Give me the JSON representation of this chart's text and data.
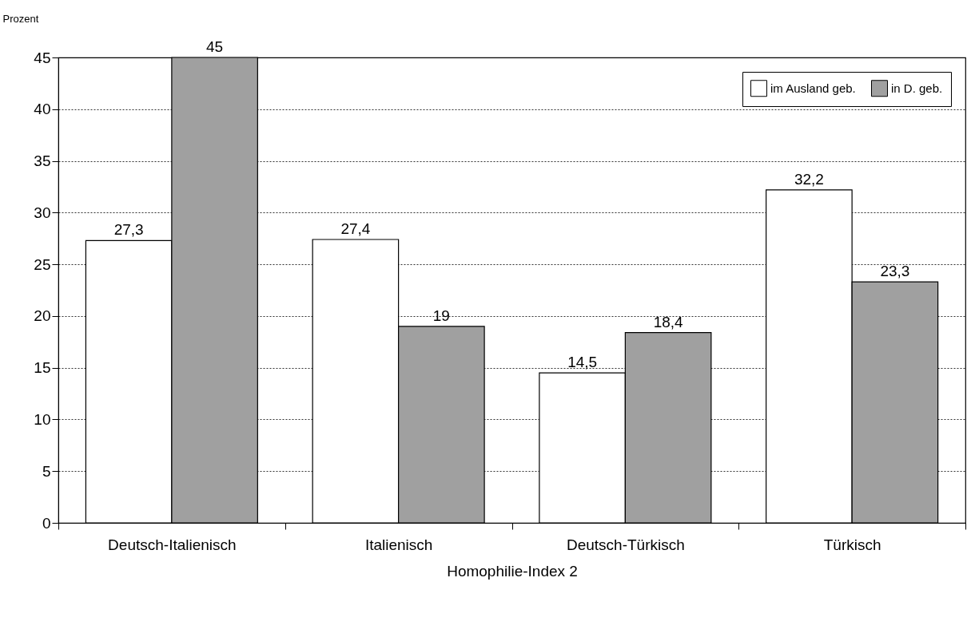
{
  "chart_data": {
    "type": "bar",
    "ylabel": "Prozent",
    "xlabel": "Homophilie-Index 2",
    "categories": [
      "Deutsch-Italienisch",
      "Italienisch",
      "Deutsch-Türkisch",
      "Türkisch"
    ],
    "series": [
      {
        "name": "im Ausland geb.",
        "color": "#ffffff",
        "values": [
          27.3,
          27.4,
          14.5,
          32.2
        ],
        "value_labels": [
          "27,3",
          "27,4",
          "14,5",
          "32,2"
        ]
      },
      {
        "name": "in D. geb.",
        "color": "#a0a0a0",
        "values": [
          45,
          19,
          18.4,
          23.3
        ],
        "value_labels": [
          "45",
          "19",
          "18,4",
          "23,3"
        ]
      }
    ],
    "ylim": [
      0,
      45
    ],
    "yticks": [
      0,
      5,
      10,
      15,
      20,
      25,
      30,
      35,
      40,
      45
    ],
    "grid": "y",
    "legend": "top right"
  }
}
